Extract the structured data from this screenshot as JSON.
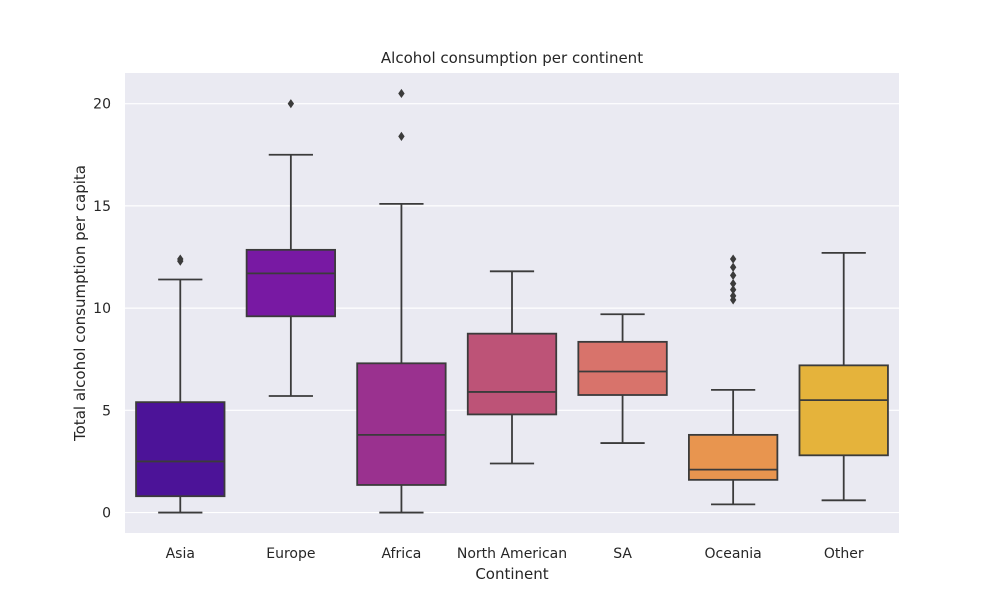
{
  "chart_data": {
    "type": "box",
    "title": "Alcohol consumption per continent",
    "xlabel": "Continent",
    "ylabel": "Total alcohol consumption per capita",
    "ylim": [
      -1,
      21.5
    ],
    "yticks": [
      0,
      5,
      10,
      15,
      20
    ],
    "grid": true,
    "background": "#eaeaf2",
    "categories": [
      "Asia",
      "Europe",
      "Africa",
      "North American",
      "SA",
      "Oceania",
      "Other"
    ],
    "boxes": [
      {
        "category": "Asia",
        "whisker_low": 0.0,
        "q1": 0.8,
        "median": 2.5,
        "q3": 5.4,
        "whisker_high": 11.4,
        "outliers": [
          12.3,
          12.4
        ],
        "color": "#4c1398"
      },
      {
        "category": "Europe",
        "whisker_low": 5.7,
        "q1": 9.6,
        "median": 11.7,
        "q3": 12.85,
        "whisker_high": 17.5,
        "outliers": [
          20.0
        ],
        "color": "#7819a3"
      },
      {
        "category": "Africa",
        "whisker_low": 0.0,
        "q1": 1.35,
        "median": 3.8,
        "q3": 7.3,
        "whisker_high": 15.1,
        "outliers": [
          18.4,
          20.5
        ],
        "color": "#9a318f"
      },
      {
        "category": "North American",
        "whisker_low": 2.4,
        "q1": 4.8,
        "median": 5.9,
        "q3": 8.75,
        "whisker_high": 11.8,
        "outliers": [],
        "color": "#bd5377"
      },
      {
        "category": "SA",
        "whisker_low": 3.4,
        "q1": 5.75,
        "median": 6.9,
        "q3": 8.35,
        "whisker_high": 9.7,
        "outliers": [],
        "color": "#d8736b"
      },
      {
        "category": "Oceania",
        "whisker_low": 0.4,
        "q1": 1.6,
        "median": 2.1,
        "q3": 3.8,
        "whisker_high": 6.0,
        "outliers": [
          10.4,
          10.6,
          10.9,
          11.2,
          11.6,
          12.0,
          12.4
        ],
        "color": "#e8954f"
      },
      {
        "category": "Other",
        "whisker_low": 0.6,
        "q1": 2.8,
        "median": 5.5,
        "q3": 7.2,
        "whisker_high": 12.7,
        "outliers": [],
        "color": "#e5b33b"
      }
    ]
  }
}
